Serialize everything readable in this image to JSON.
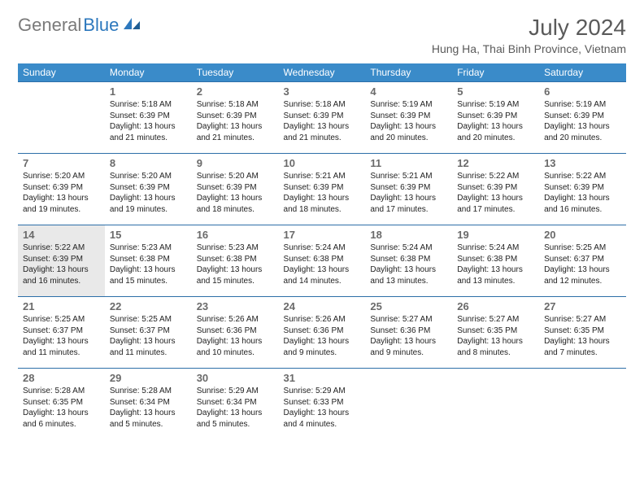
{
  "logo": {
    "part1": "General",
    "part2": "Blue"
  },
  "title": "July 2024",
  "location": "Hung Ha, Thai Binh Province, Vietnam",
  "colors": {
    "header_bg": "#3a8bc9",
    "row_divider": "#2d6fa8",
    "today_bg": "#e9e9e9",
    "text": "#333333",
    "title_text": "#5a5a5a",
    "logo_gray": "#7a7a7a",
    "logo_blue": "#2d78bd",
    "background": "#ffffff"
  },
  "typography": {
    "month_title_size": 28,
    "location_size": 14,
    "dayheader_size": 12,
    "daynum_size": 13,
    "info_size": 10
  },
  "dayHeaders": [
    "Sunday",
    "Monday",
    "Tuesday",
    "Wednesday",
    "Thursday",
    "Friday",
    "Saturday"
  ],
  "weeks": [
    [
      {
        "n": "",
        "sr": "",
        "ss": "",
        "dl": ""
      },
      {
        "n": "1",
        "sr": "Sunrise: 5:18 AM",
        "ss": "Sunset: 6:39 PM",
        "dl": "Daylight: 13 hours and 21 minutes."
      },
      {
        "n": "2",
        "sr": "Sunrise: 5:18 AM",
        "ss": "Sunset: 6:39 PM",
        "dl": "Daylight: 13 hours and 21 minutes."
      },
      {
        "n": "3",
        "sr": "Sunrise: 5:18 AM",
        "ss": "Sunset: 6:39 PM",
        "dl": "Daylight: 13 hours and 21 minutes."
      },
      {
        "n": "4",
        "sr": "Sunrise: 5:19 AM",
        "ss": "Sunset: 6:39 PM",
        "dl": "Daylight: 13 hours and 20 minutes."
      },
      {
        "n": "5",
        "sr": "Sunrise: 5:19 AM",
        "ss": "Sunset: 6:39 PM",
        "dl": "Daylight: 13 hours and 20 minutes."
      },
      {
        "n": "6",
        "sr": "Sunrise: 5:19 AM",
        "ss": "Sunset: 6:39 PM",
        "dl": "Daylight: 13 hours and 20 minutes."
      }
    ],
    [
      {
        "n": "7",
        "sr": "Sunrise: 5:20 AM",
        "ss": "Sunset: 6:39 PM",
        "dl": "Daylight: 13 hours and 19 minutes."
      },
      {
        "n": "8",
        "sr": "Sunrise: 5:20 AM",
        "ss": "Sunset: 6:39 PM",
        "dl": "Daylight: 13 hours and 19 minutes."
      },
      {
        "n": "9",
        "sr": "Sunrise: 5:20 AM",
        "ss": "Sunset: 6:39 PM",
        "dl": "Daylight: 13 hours and 18 minutes."
      },
      {
        "n": "10",
        "sr": "Sunrise: 5:21 AM",
        "ss": "Sunset: 6:39 PM",
        "dl": "Daylight: 13 hours and 18 minutes."
      },
      {
        "n": "11",
        "sr": "Sunrise: 5:21 AM",
        "ss": "Sunset: 6:39 PM",
        "dl": "Daylight: 13 hours and 17 minutes."
      },
      {
        "n": "12",
        "sr": "Sunrise: 5:22 AM",
        "ss": "Sunset: 6:39 PM",
        "dl": "Daylight: 13 hours and 17 minutes."
      },
      {
        "n": "13",
        "sr": "Sunrise: 5:22 AM",
        "ss": "Sunset: 6:39 PM",
        "dl": "Daylight: 13 hours and 16 minutes."
      }
    ],
    [
      {
        "n": "14",
        "sr": "Sunrise: 5:22 AM",
        "ss": "Sunset: 6:39 PM",
        "dl": "Daylight: 13 hours and 16 minutes.",
        "today": true
      },
      {
        "n": "15",
        "sr": "Sunrise: 5:23 AM",
        "ss": "Sunset: 6:38 PM",
        "dl": "Daylight: 13 hours and 15 minutes."
      },
      {
        "n": "16",
        "sr": "Sunrise: 5:23 AM",
        "ss": "Sunset: 6:38 PM",
        "dl": "Daylight: 13 hours and 15 minutes."
      },
      {
        "n": "17",
        "sr": "Sunrise: 5:24 AM",
        "ss": "Sunset: 6:38 PM",
        "dl": "Daylight: 13 hours and 14 minutes."
      },
      {
        "n": "18",
        "sr": "Sunrise: 5:24 AM",
        "ss": "Sunset: 6:38 PM",
        "dl": "Daylight: 13 hours and 13 minutes."
      },
      {
        "n": "19",
        "sr": "Sunrise: 5:24 AM",
        "ss": "Sunset: 6:38 PM",
        "dl": "Daylight: 13 hours and 13 minutes."
      },
      {
        "n": "20",
        "sr": "Sunrise: 5:25 AM",
        "ss": "Sunset: 6:37 PM",
        "dl": "Daylight: 13 hours and 12 minutes."
      }
    ],
    [
      {
        "n": "21",
        "sr": "Sunrise: 5:25 AM",
        "ss": "Sunset: 6:37 PM",
        "dl": "Daylight: 13 hours and 11 minutes."
      },
      {
        "n": "22",
        "sr": "Sunrise: 5:25 AM",
        "ss": "Sunset: 6:37 PM",
        "dl": "Daylight: 13 hours and 11 minutes."
      },
      {
        "n": "23",
        "sr": "Sunrise: 5:26 AM",
        "ss": "Sunset: 6:36 PM",
        "dl": "Daylight: 13 hours and 10 minutes."
      },
      {
        "n": "24",
        "sr": "Sunrise: 5:26 AM",
        "ss": "Sunset: 6:36 PM",
        "dl": "Daylight: 13 hours and 9 minutes."
      },
      {
        "n": "25",
        "sr": "Sunrise: 5:27 AM",
        "ss": "Sunset: 6:36 PM",
        "dl": "Daylight: 13 hours and 9 minutes."
      },
      {
        "n": "26",
        "sr": "Sunrise: 5:27 AM",
        "ss": "Sunset: 6:35 PM",
        "dl": "Daylight: 13 hours and 8 minutes."
      },
      {
        "n": "27",
        "sr": "Sunrise: 5:27 AM",
        "ss": "Sunset: 6:35 PM",
        "dl": "Daylight: 13 hours and 7 minutes."
      }
    ],
    [
      {
        "n": "28",
        "sr": "Sunrise: 5:28 AM",
        "ss": "Sunset: 6:35 PM",
        "dl": "Daylight: 13 hours and 6 minutes."
      },
      {
        "n": "29",
        "sr": "Sunrise: 5:28 AM",
        "ss": "Sunset: 6:34 PM",
        "dl": "Daylight: 13 hours and 5 minutes."
      },
      {
        "n": "30",
        "sr": "Sunrise: 5:29 AM",
        "ss": "Sunset: 6:34 PM",
        "dl": "Daylight: 13 hours and 5 minutes."
      },
      {
        "n": "31",
        "sr": "Sunrise: 5:29 AM",
        "ss": "Sunset: 6:33 PM",
        "dl": "Daylight: 13 hours and 4 minutes."
      },
      {
        "n": "",
        "sr": "",
        "ss": "",
        "dl": ""
      },
      {
        "n": "",
        "sr": "",
        "ss": "",
        "dl": ""
      },
      {
        "n": "",
        "sr": "",
        "ss": "",
        "dl": ""
      }
    ]
  ]
}
